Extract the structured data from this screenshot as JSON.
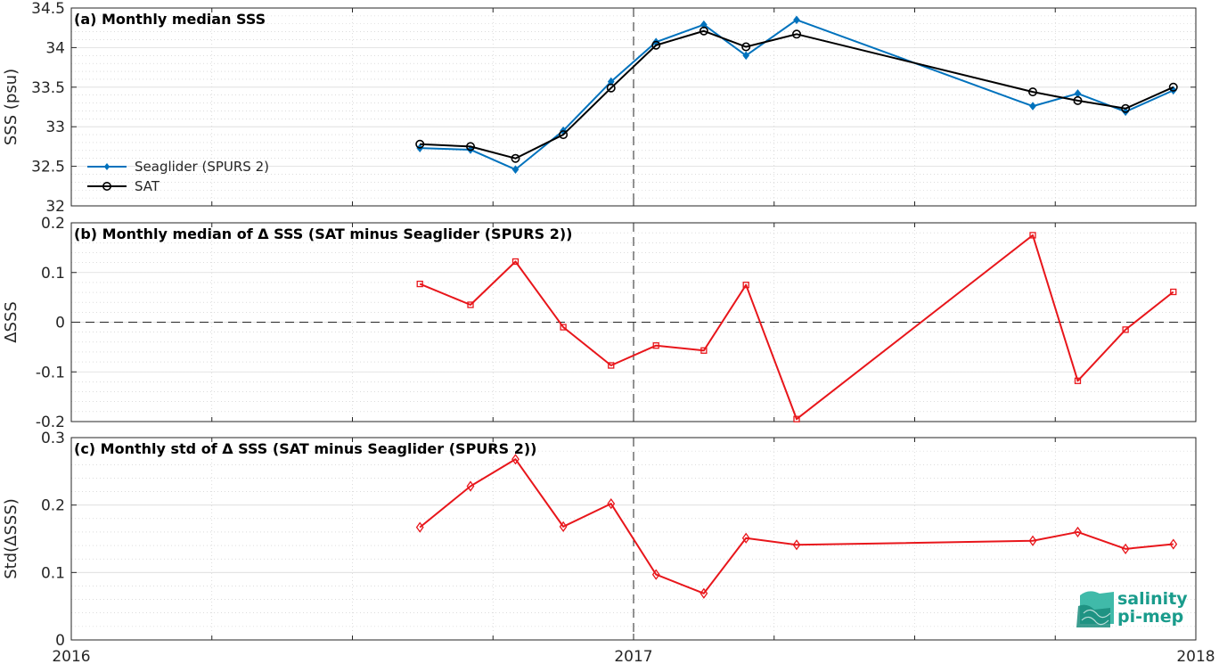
{
  "colors": {
    "seaglider": "#0072BD",
    "sat": "#000000",
    "delta": "#E8161B",
    "logo": "#1a9c8c"
  },
  "logo": {
    "line1": "salinity",
    "line2": "pi-mep"
  },
  "chart_data": [
    {
      "type": "line",
      "title": "(a) Monthly median SSS",
      "ylabel": "SSS (psu)",
      "xlim": [
        2016.0,
        2018.0
      ],
      "xticks": [
        "2016",
        "2017",
        "2018"
      ],
      "ylim": [
        32,
        34.5
      ],
      "yticks": [
        "32",
        "32.5",
        "33",
        "33.5",
        "34",
        "34.5"
      ],
      "grid": true,
      "legend_position": "left",
      "vline": 2017.0,
      "x": [
        2016.62,
        2016.71,
        2016.79,
        2016.875,
        2016.96,
        2017.04,
        2017.125,
        2017.2,
        2017.29,
        2017.71,
        2017.79,
        2017.875,
        2017.96
      ],
      "series": [
        {
          "name": "Seaglider (SPURS 2)",
          "marker": "diamond-filled",
          "values": [
            32.73,
            32.71,
            32.46,
            32.95,
            33.57,
            34.07,
            34.29,
            33.9,
            34.35,
            33.26,
            33.42,
            33.19,
            33.46
          ]
        },
        {
          "name": "SAT",
          "marker": "circle",
          "values": [
            32.78,
            32.75,
            32.6,
            32.9,
            33.49,
            34.03,
            34.21,
            34.01,
            34.17,
            33.44,
            33.33,
            33.23,
            33.5
          ]
        }
      ]
    },
    {
      "type": "line",
      "title": "(b) Monthly median of Δ SSS (SAT minus Seaglider (SPURS 2))",
      "ylabel": "ΔSSS",
      "xlim": [
        2016.0,
        2018.0
      ],
      "ylim": [
        -0.2,
        0.2
      ],
      "yticks": [
        "-0.2",
        "-0.1",
        "0",
        "0.1",
        "0.2"
      ],
      "grid": true,
      "vline": 2017.0,
      "hline": 0,
      "x": [
        2016.62,
        2016.71,
        2016.79,
        2016.875,
        2016.96,
        2017.04,
        2017.125,
        2017.2,
        2017.29,
        2017.71,
        2017.79,
        2017.875,
        2017.96
      ],
      "series": [
        {
          "name": "",
          "marker": "square",
          "values": [
            0.077,
            0.035,
            0.122,
            -0.01,
            -0.087,
            -0.047,
            -0.057,
            0.075,
            -0.195,
            0.175,
            -0.118,
            -0.015,
            0.061
          ]
        }
      ]
    },
    {
      "type": "line",
      "title": "(c) Monthly std of Δ SSS (SAT minus Seaglider (SPURS 2))",
      "ylabel": "Std(ΔSSS)",
      "xlim": [
        2016.0,
        2018.0
      ],
      "ylim": [
        0,
        0.3
      ],
      "yticks": [
        "0",
        "0.1",
        "0.2",
        "0.3"
      ],
      "grid": true,
      "vline": 2017.0,
      "x": [
        2016.62,
        2016.71,
        2016.79,
        2016.875,
        2016.96,
        2017.04,
        2017.125,
        2017.2,
        2017.29,
        2017.71,
        2017.79,
        2017.875,
        2017.96
      ],
      "series": [
        {
          "name": "",
          "marker": "diamond",
          "values": [
            0.167,
            0.228,
            0.268,
            0.168,
            0.202,
            0.097,
            0.069,
            0.151,
            0.141,
            0.147,
            0.16,
            0.135,
            0.142
          ]
        }
      ]
    }
  ]
}
